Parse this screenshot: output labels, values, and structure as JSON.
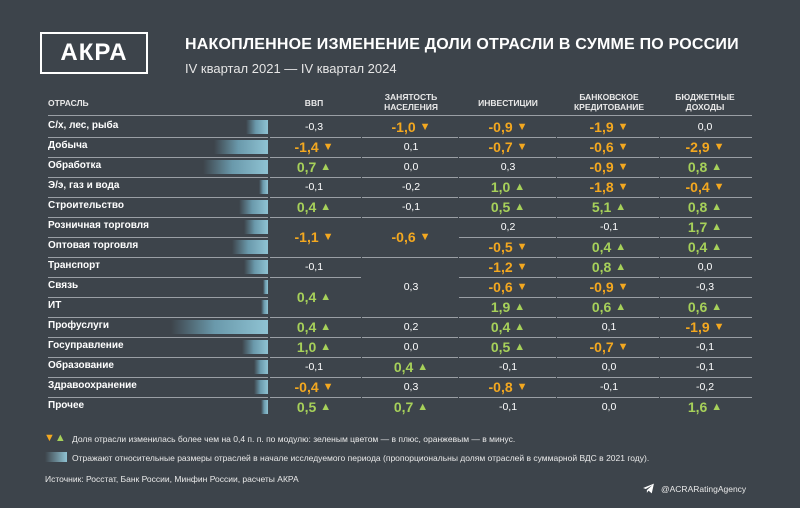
{
  "logo": "АКРА",
  "title": "НАКОПЛЕННОЕ ИЗМЕНЕНИЕ ДОЛИ ОТРАСЛИ В СУММЕ ПО РОССИИ",
  "subtitle": "IV квартал 2021 — IV квартал 2024",
  "headers": {
    "sector": "ОТРАСЛЬ",
    "gdp": "ВВП",
    "emp": "ЗАНЯТОСТЬ\nНАСЕЛЕНИЯ",
    "inv": "ИНВЕСТИЦИИ",
    "bank": "БАНКОВСКОЕ\nКРЕДИТОВАНИЕ",
    "budget": "БЮДЖЕТНЫЕ\nДОХОДЫ"
  },
  "colors": {
    "background": "#3d444b",
    "negative": "#f3a820",
    "positive": "#a7d15a",
    "bar": "#8fc3d3"
  },
  "chart_data": {
    "type": "table",
    "columns": [
      "ВВП",
      "Занятость населения",
      "Инвестиции",
      "Банковское кредитование",
      "Бюджетные доходы"
    ],
    "rows": [
      {
        "sector": "С/х, лес, рыба",
        "size": 0.13
      },
      {
        "sector": "Добыча",
        "size": 0.32
      },
      {
        "sector": "Обработка",
        "size": 0.38
      },
      {
        "sector": "Э/э, газ и вода",
        "size": 0.05
      },
      {
        "sector": "Строительство",
        "size": 0.17
      },
      {
        "sector": "Розничная торговля",
        "size": 0.14
      },
      {
        "sector": "Оптовая торговля",
        "size": 0.21
      },
      {
        "sector": "Транспорт",
        "size": 0.14
      },
      {
        "sector": "Связь",
        "size": 0.03
      },
      {
        "sector": "ИТ",
        "size": 0.04
      },
      {
        "sector": "Профуслуги",
        "size": 0.57
      },
      {
        "sector": "Госуправление",
        "size": 0.15
      },
      {
        "sector": "Образование",
        "size": 0.08
      },
      {
        "sector": "Здравоохранение",
        "size": 0.08
      },
      {
        "sector": "Прочее",
        "size": 0.04
      }
    ],
    "cells": [
      {
        "row": 0,
        "span": 1,
        "col": 0,
        "value": "-0,3",
        "style": "n"
      },
      {
        "row": 0,
        "span": 1,
        "col": 1,
        "value": "-1,0",
        "style": "o"
      },
      {
        "row": 0,
        "span": 1,
        "col": 2,
        "value": "-0,9",
        "style": "o"
      },
      {
        "row": 0,
        "span": 1,
        "col": 3,
        "value": "-1,9",
        "style": "o"
      },
      {
        "row": 0,
        "span": 1,
        "col": 4,
        "value": "0,0",
        "style": "n"
      },
      {
        "row": 1,
        "span": 1,
        "col": 0,
        "value": "-1,4",
        "style": "o"
      },
      {
        "row": 1,
        "span": 1,
        "col": 1,
        "value": "0,1",
        "style": "n"
      },
      {
        "row": 1,
        "span": 1,
        "col": 2,
        "value": "-0,7",
        "style": "o"
      },
      {
        "row": 1,
        "span": 1,
        "col": 3,
        "value": "-0,6",
        "style": "o"
      },
      {
        "row": 1,
        "span": 1,
        "col": 4,
        "value": "-2,9",
        "style": "o"
      },
      {
        "row": 2,
        "span": 1,
        "col": 0,
        "value": "0,7",
        "style": "g"
      },
      {
        "row": 2,
        "span": 1,
        "col": 1,
        "value": "0,0",
        "style": "n"
      },
      {
        "row": 2,
        "span": 1,
        "col": 2,
        "value": "0,3",
        "style": "n"
      },
      {
        "row": 2,
        "span": 1,
        "col": 3,
        "value": "-0,9",
        "style": "o"
      },
      {
        "row": 2,
        "span": 1,
        "col": 4,
        "value": "0,8",
        "style": "g"
      },
      {
        "row": 3,
        "span": 1,
        "col": 0,
        "value": "-0,1",
        "style": "n"
      },
      {
        "row": 3,
        "span": 1,
        "col": 1,
        "value": "-0,2",
        "style": "n"
      },
      {
        "row": 3,
        "span": 1,
        "col": 2,
        "value": "1,0",
        "style": "g"
      },
      {
        "row": 3,
        "span": 1,
        "col": 3,
        "value": "-1,8",
        "style": "o"
      },
      {
        "row": 3,
        "span": 1,
        "col": 4,
        "value": "-0,4",
        "style": "o"
      },
      {
        "row": 4,
        "span": 1,
        "col": 0,
        "value": "0,4",
        "style": "g"
      },
      {
        "row": 4,
        "span": 1,
        "col": 1,
        "value": "-0,1",
        "style": "n"
      },
      {
        "row": 4,
        "span": 1,
        "col": 2,
        "value": "0,5",
        "style": "g"
      },
      {
        "row": 4,
        "span": 1,
        "col": 3,
        "value": "5,1",
        "style": "g"
      },
      {
        "row": 4,
        "span": 1,
        "col": 4,
        "value": "0,8",
        "style": "g"
      },
      {
        "row": 5,
        "span": 2,
        "col": 0,
        "value": "-1,1",
        "style": "o"
      },
      {
        "row": 5,
        "span": 2,
        "col": 1,
        "value": "-0,6",
        "style": "o"
      },
      {
        "row": 5,
        "span": 1,
        "col": 2,
        "value": "0,2",
        "style": "n"
      },
      {
        "row": 5,
        "span": 1,
        "col": 3,
        "value": "-0,1",
        "style": "n"
      },
      {
        "row": 5,
        "span": 1,
        "col": 4,
        "value": "1,7",
        "style": "g"
      },
      {
        "row": 6,
        "span": 1,
        "col": 2,
        "value": "-0,5",
        "style": "o"
      },
      {
        "row": 6,
        "span": 1,
        "col": 3,
        "value": "0,4",
        "style": "g"
      },
      {
        "row": 6,
        "span": 1,
        "col": 4,
        "value": "0,4",
        "style": "g"
      },
      {
        "row": 7,
        "span": 1,
        "col": 0,
        "value": "-0,1",
        "style": "n"
      },
      {
        "row": 7,
        "span": 3,
        "col": 1,
        "value": "0,3",
        "style": "n"
      },
      {
        "row": 7,
        "span": 1,
        "col": 2,
        "value": "-1,2",
        "style": "o"
      },
      {
        "row": 7,
        "span": 1,
        "col": 3,
        "value": "0,8",
        "style": "g"
      },
      {
        "row": 7,
        "span": 1,
        "col": 4,
        "value": "0,0",
        "style": "n"
      },
      {
        "row": 8,
        "span": 2,
        "col": 0,
        "value": "0,4",
        "style": "g"
      },
      {
        "row": 8,
        "span": 1,
        "col": 2,
        "value": "-0,6",
        "style": "o"
      },
      {
        "row": 8,
        "span": 1,
        "col": 3,
        "value": "-0,9",
        "style": "o"
      },
      {
        "row": 8,
        "span": 1,
        "col": 4,
        "value": "-0,3",
        "style": "n"
      },
      {
        "row": 9,
        "span": 1,
        "col": 2,
        "value": "1,9",
        "style": "g"
      },
      {
        "row": 9,
        "span": 1,
        "col": 3,
        "value": "0,6",
        "style": "g"
      },
      {
        "row": 9,
        "span": 1,
        "col": 4,
        "value": "0,6",
        "style": "g"
      },
      {
        "row": 10,
        "span": 1,
        "col": 0,
        "value": "0,4",
        "style": "g"
      },
      {
        "row": 10,
        "span": 1,
        "col": 1,
        "value": "0,2",
        "style": "n"
      },
      {
        "row": 10,
        "span": 1,
        "col": 2,
        "value": "0,4",
        "style": "g"
      },
      {
        "row": 10,
        "span": 1,
        "col": 3,
        "value": "0,1",
        "style": "n"
      },
      {
        "row": 10,
        "span": 1,
        "col": 4,
        "value": "-1,9",
        "style": "o"
      },
      {
        "row": 11,
        "span": 1,
        "col": 0,
        "value": "1,0",
        "style": "g"
      },
      {
        "row": 11,
        "span": 1,
        "col": 1,
        "value": "0,0",
        "style": "n"
      },
      {
        "row": 11,
        "span": 1,
        "col": 2,
        "value": "0,5",
        "style": "g"
      },
      {
        "row": 11,
        "span": 1,
        "col": 3,
        "value": "-0,7",
        "style": "o"
      },
      {
        "row": 11,
        "span": 1,
        "col": 4,
        "value": "-0,1",
        "style": "n"
      },
      {
        "row": 12,
        "span": 1,
        "col": 0,
        "value": "-0,1",
        "style": "n"
      },
      {
        "row": 12,
        "span": 1,
        "col": 1,
        "value": "0,4",
        "style": "g"
      },
      {
        "row": 12,
        "span": 1,
        "col": 2,
        "value": "-0,1",
        "style": "n"
      },
      {
        "row": 12,
        "span": 1,
        "col": 3,
        "value": "0,0",
        "style": "n"
      },
      {
        "row": 12,
        "span": 1,
        "col": 4,
        "value": "-0,1",
        "style": "n"
      },
      {
        "row": 13,
        "span": 1,
        "col": 0,
        "value": "-0,4",
        "style": "o"
      },
      {
        "row": 13,
        "span": 1,
        "col": 1,
        "value": "0,3",
        "style": "n"
      },
      {
        "row": 13,
        "span": 1,
        "col": 2,
        "value": "-0,8",
        "style": "o"
      },
      {
        "row": 13,
        "span": 1,
        "col": 3,
        "value": "-0,1",
        "style": "n"
      },
      {
        "row": 13,
        "span": 1,
        "col": 4,
        "value": "-0,2",
        "style": "n"
      },
      {
        "row": 14,
        "span": 1,
        "col": 0,
        "value": "0,5",
        "style": "g"
      },
      {
        "row": 14,
        "span": 1,
        "col": 1,
        "value": "0,7",
        "style": "g"
      },
      {
        "row": 14,
        "span": 1,
        "col": 2,
        "value": "-0,1",
        "style": "n"
      },
      {
        "row": 14,
        "span": 1,
        "col": 3,
        "value": "0,0",
        "style": "n"
      },
      {
        "row": 14,
        "span": 1,
        "col": 4,
        "value": "1,6",
        "style": "g"
      }
    ]
  },
  "footer": {
    "legend1": "Доля отрасли изменилась более чем на 0,4 п. п. по модулю: зеленым цветом — в плюс, оранжевым — в минус.",
    "legend2": "Отражают относительные размеры отраслей в начале исследуемого периода (пропорциональны долям отраслей в суммарной ВДС в 2021 году).",
    "source": "Источник: Росстат, Банк России, Минфин России, расчеты АКРА",
    "telegram": "@ACRARatingAgency"
  }
}
